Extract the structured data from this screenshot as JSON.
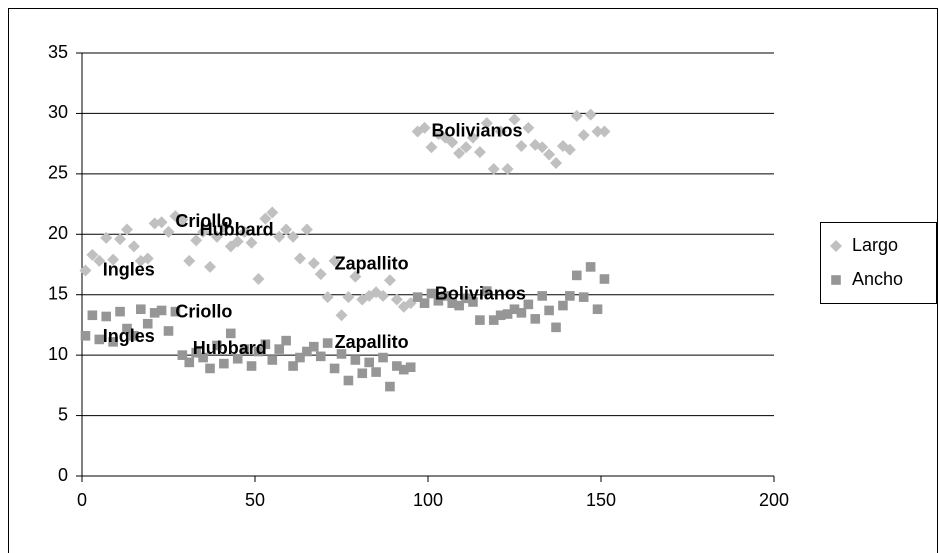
{
  "chart_data": {
    "type": "scatter",
    "x": [
      1,
      3,
      5,
      7,
      9,
      11,
      13,
      15,
      17,
      19,
      21,
      23,
      25,
      27,
      29,
      31,
      33,
      35,
      37,
      39,
      41,
      43,
      45,
      47,
      49,
      51,
      53,
      55,
      57,
      59,
      61,
      63,
      65,
      67,
      69,
      71,
      73,
      75,
      77,
      79,
      81,
      83,
      85,
      87,
      89,
      91,
      93,
      95,
      97,
      99,
      101,
      103,
      105,
      107,
      109,
      111,
      113,
      115,
      117,
      119,
      121,
      123,
      125,
      127,
      129,
      131,
      133,
      135,
      137,
      139,
      141,
      143,
      145,
      147,
      149,
      151
    ],
    "series": [
      {
        "name": "Largo",
        "color": "#c0c0c0",
        "marker": "diamond",
        "values": [
          17,
          18.3,
          17.8,
          19.7,
          17.9,
          19.6,
          20.4,
          19,
          17.8,
          18,
          20.9,
          21,
          20.2,
          21.5,
          21.2,
          17.8,
          19.5,
          20.2,
          17.3,
          19.8,
          20.6,
          19,
          19.4,
          20.2,
          19.3,
          16.3,
          21.3,
          21.8,
          19.8,
          20.4,
          19.8,
          18,
          20.4,
          17.6,
          16.7,
          14.8,
          17.8,
          13.3,
          14.8,
          16.5,
          14.6,
          14.9,
          15.2,
          14.9,
          16.2,
          14.6,
          14,
          14.3,
          28.5,
          28.8,
          27.2,
          28.3,
          28,
          27.6,
          26.7,
          27.2,
          28,
          26.8,
          29.2,
          25.4,
          28.5,
          25.4,
          29.5,
          27.3,
          28.8,
          27.4,
          27.2,
          26.6,
          25.9,
          27.3,
          27,
          29.8,
          28.2,
          29.9,
          28.5,
          28.5
        ]
      },
      {
        "name": "Ancho",
        "color": "#969696",
        "marker": "square",
        "values": [
          11.6,
          13.3,
          11.3,
          13.2,
          11.1,
          13.6,
          12.2,
          11.6,
          13.8,
          12.6,
          13.5,
          13.7,
          12,
          13.6,
          10,
          9.4,
          10.2,
          9.8,
          8.9,
          10.8,
          9.3,
          11.8,
          9.7,
          10.5,
          9.1,
          10.3,
          10.9,
          9.6,
          10.5,
          11.2,
          9.1,
          9.8,
          10.3,
          10.7,
          9.9,
          11,
          8.9,
          10.1,
          7.9,
          9.6,
          8.5,
          9.4,
          8.6,
          9.8,
          7.4,
          9.1,
          8.8,
          9,
          14.8,
          14.3,
          15.1,
          14.5,
          14.9,
          14.3,
          14.1,
          14.7,
          14.4,
          12.9,
          15.3,
          12.9,
          13.3,
          13.4,
          13.8,
          13.5,
          14.2,
          13,
          14.9,
          13.7,
          12.3,
          14.1,
          14.9,
          16.6,
          14.8,
          17.3,
          13.8,
          16.3
        ]
      }
    ],
    "annotations": [
      {
        "text": "Ingles",
        "x": 6,
        "y": 17
      },
      {
        "text": "Criollo",
        "x": 27,
        "y": 21
      },
      {
        "text": "Hubbard",
        "x": 34,
        "y": 20.3
      },
      {
        "text": "Zapallito",
        "x": 73,
        "y": 17.5
      },
      {
        "text": "Bolivianos",
        "x": 101,
        "y": 28.5
      },
      {
        "text": "Criollo",
        "x": 27,
        "y": 13.5
      },
      {
        "text": "Ingles",
        "x": 6,
        "y": 11.5
      },
      {
        "text": "Hubbard",
        "x": 32,
        "y": 10.5
      },
      {
        "text": "Zapallito",
        "x": 73,
        "y": 11
      },
      {
        "text": "Bolivianos",
        "x": 102,
        "y": 15
      }
    ],
    "xlim": [
      0,
      200
    ],
    "xticks": [
      0,
      50,
      100,
      150,
      200
    ],
    "ylim": [
      0,
      35
    ],
    "yticks": [
      0,
      5,
      10,
      15,
      20,
      25,
      30,
      35
    ],
    "grid": true,
    "legend": "right"
  }
}
